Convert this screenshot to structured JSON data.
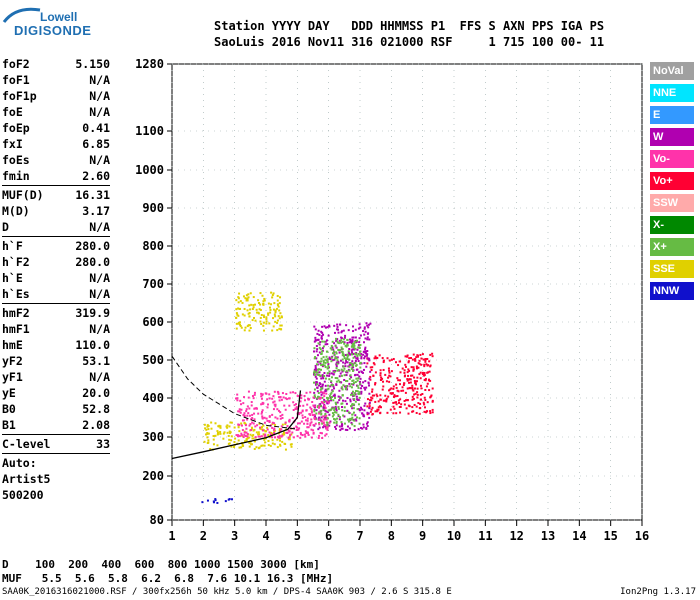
{
  "logo": {
    "top": "Lowell",
    "bottom": "DIGISONDE"
  },
  "header": {
    "line1": "Station YYYY DAY   DDD HHMMSS P1  FFS S AXN PPS IGA PS",
    "line2": "SaoLuis 2016 Nov11 316 021000 RSF     1 715 100 00- 11"
  },
  "params": [
    {
      "name": "foF2",
      "value": "5.150"
    },
    {
      "name": "foF1",
      "value": "N/A"
    },
    {
      "name": "foF1p",
      "value": "N/A"
    },
    {
      "name": "foE",
      "value": "N/A"
    },
    {
      "name": "foEp",
      "value": "0.41"
    },
    {
      "name": "fxI",
      "value": "6.85"
    },
    {
      "name": "foEs",
      "value": "N/A"
    },
    {
      "name": "fmin",
      "value": "2.60"
    },
    {
      "sep": true
    },
    {
      "name": "MUF(D)",
      "value": "16.31"
    },
    {
      "name": "M(D)",
      "value": "3.17"
    },
    {
      "name": "D",
      "value": "N/A"
    },
    {
      "sep": true
    },
    {
      "name": "h`F",
      "value": "280.0"
    },
    {
      "name": "h`F2",
      "value": "280.0"
    },
    {
      "name": "h`E",
      "value": "N/A"
    },
    {
      "name": "h`Es",
      "value": "N/A"
    },
    {
      "sep": true
    },
    {
      "name": "hmF2",
      "value": "319.9"
    },
    {
      "name": "hmF1",
      "value": "N/A"
    },
    {
      "name": "hmE",
      "value": "110.0"
    },
    {
      "name": "yF2",
      "value": "53.1"
    },
    {
      "name": "yF1",
      "value": "N/A"
    },
    {
      "name": "yE",
      "value": "20.0"
    },
    {
      "name": "B0",
      "value": "52.8"
    },
    {
      "name": "B1",
      "value": "2.08"
    },
    {
      "sep": true
    },
    {
      "name": "C-level",
      "value": "33"
    },
    {
      "sep": true
    },
    {
      "name": "Auto:",
      "value": ""
    },
    {
      "name": "Artist5",
      "value": ""
    },
    {
      "name": "500200",
      "value": ""
    }
  ],
  "muf_table": {
    "d_line": "D    100  200  400  600  800 1000 1500 3000 [km]",
    "muf_line": "MUF   5.5  5.6  5.8  6.2  6.8  7.6 10.1 16.3 [MHz]"
  },
  "footer": "SAA0K_2016316021000.RSF / 300fx256h 50 kHz 5.0 km / DPS-4 SAA0K 903 / 2.6 S 315.8 E",
  "version": "Ion2Png 1.3.17",
  "legend": [
    {
      "label": "NoVal",
      "color": "#a0a0a0"
    },
    {
      "label": "NNE",
      "color": "#00e5ff"
    },
    {
      "label": "E",
      "color": "#3399ff"
    },
    {
      "label": "W",
      "color": "#b000b0"
    },
    {
      "label": "Vo-",
      "color": "#ff33aa"
    },
    {
      "label": "Vo+",
      "color": "#ff0033"
    },
    {
      "label": "SSW",
      "color": "#ffaaaa"
    },
    {
      "label": "X-",
      "color": "#008800"
    },
    {
      "label": "X+",
      "color": "#66bb44"
    },
    {
      "label": "SSE",
      "color": "#e0d000"
    },
    {
      "label": "NNW",
      "color": "#1010cc"
    }
  ],
  "chart_data": {
    "type": "scatter",
    "x_ticks": [
      "1",
      "2",
      "3",
      "4",
      "5",
      "6",
      "7",
      "8",
      "9",
      "10",
      "11",
      "12",
      "13",
      "14",
      "15",
      "16"
    ],
    "y_ticks": [
      "80",
      "200",
      "300",
      "400",
      "500",
      "600",
      "700",
      "800",
      "900",
      "1000",
      "1100",
      "1280"
    ],
    "xlim": [
      1,
      16
    ],
    "ylim": [
      80,
      1280
    ],
    "y_scale": "reciprocal-like ionogram height axis",
    "grid": true,
    "regions": [
      {
        "color": "#ff0033",
        "fmin": 7.2,
        "fmax": 9.3,
        "hmin": 360,
        "hmax": 520
      },
      {
        "color": "#b000b0",
        "fmin": 5.5,
        "fmax": 7.3,
        "hmin": 320,
        "hmax": 600
      },
      {
        "color": "#66bb44",
        "fmin": 5.5,
        "fmax": 7.0,
        "hmin": 330,
        "hmax": 560
      },
      {
        "color": "#e0d000",
        "fmin": 2.0,
        "fmax": 4.8,
        "hmin": 270,
        "hmax": 340
      },
      {
        "color": "#ff33aa",
        "fmin": 3.0,
        "fmax": 6.0,
        "hmin": 300,
        "hmax": 420
      },
      {
        "color": "#e0d000",
        "fmin": 3.0,
        "fmax": 4.5,
        "hmin": 580,
        "hmax": 680
      },
      {
        "color": "#1010cc",
        "fmin": 1.9,
        "fmax": 2.9,
        "hmin": 128,
        "hmax": 140
      }
    ],
    "solid_trace": [
      [
        1.0,
        245
      ],
      [
        2.0,
        262
      ],
      [
        3.0,
        280
      ],
      [
        4.0,
        298
      ],
      [
        4.7,
        320
      ],
      [
        5.0,
        350
      ],
      [
        5.1,
        420
      ]
    ],
    "dashed_trace": [
      [
        1.0,
        510
      ],
      [
        1.5,
        450
      ],
      [
        2.0,
        410
      ],
      [
        3.0,
        360
      ],
      [
        4.0,
        330
      ],
      [
        5.0,
        320
      ]
    ]
  }
}
